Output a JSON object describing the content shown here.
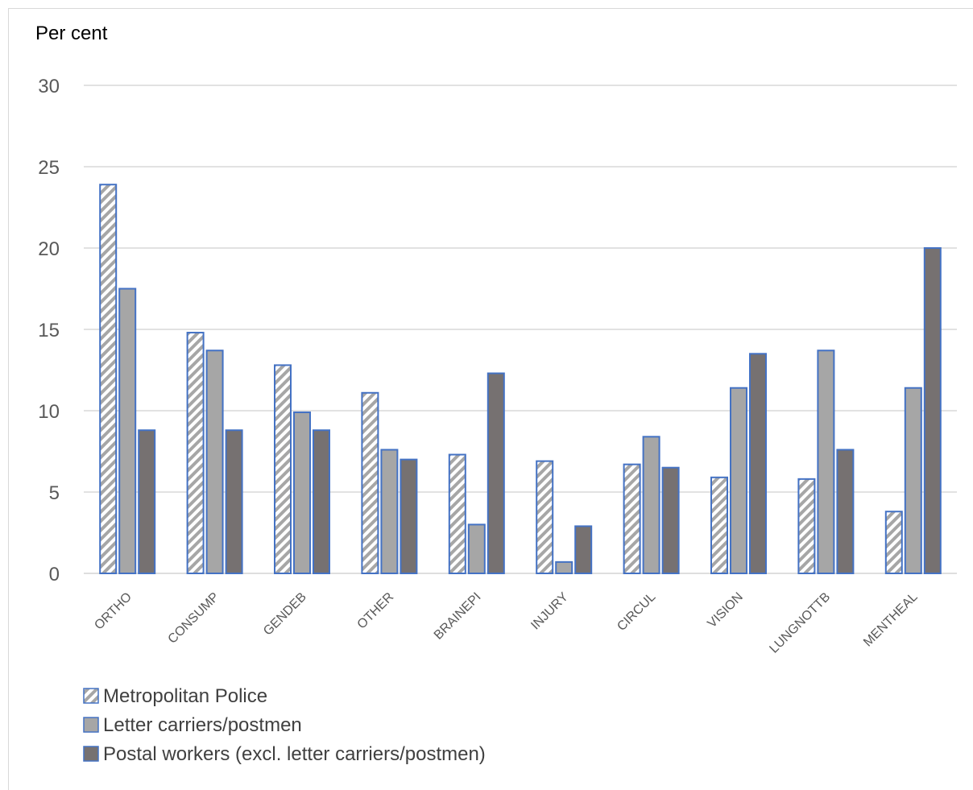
{
  "chart_data": {
    "type": "bar",
    "title": "",
    "xlabel": "",
    "ylabel": "Per cent",
    "ylim": [
      0,
      30
    ],
    "yticks": [
      0,
      5,
      10,
      15,
      20,
      25,
      30
    ],
    "grid": true,
    "legend_position": "bottom-left",
    "categories": [
      "ORTHO",
      "CONSUMP",
      "GENDEB",
      "OTHER",
      "BRAINEPI",
      "INJURY",
      "CIRCUL",
      "VISION",
      "LUNGNOTTB",
      "MENTHEAL"
    ],
    "series": [
      {
        "name": "Metropolitan Police",
        "values": [
          23.9,
          14.8,
          12.8,
          11.1,
          7.3,
          6.9,
          6.7,
          5.9,
          5.8,
          3.8
        ],
        "color": "#a6a6a6",
        "pattern": "diagonal-hatch"
      },
      {
        "name": "Letter carriers/postmen",
        "values": [
          17.5,
          13.7,
          9.9,
          7.6,
          3.0,
          0.7,
          8.4,
          11.4,
          13.7,
          11.4
        ],
        "color": "#a6a6a6",
        "pattern": "solid"
      },
      {
        "name": "Postal workers (excl. letter carriers/postmen)",
        "values": [
          8.8,
          8.8,
          8.8,
          7.0,
          12.3,
          2.9,
          6.5,
          13.5,
          7.6,
          20.0
        ],
        "color": "#767171",
        "pattern": "solid"
      }
    ],
    "bar_border_color": "#4472c4",
    "gridline_color": "#d9d9d9"
  }
}
